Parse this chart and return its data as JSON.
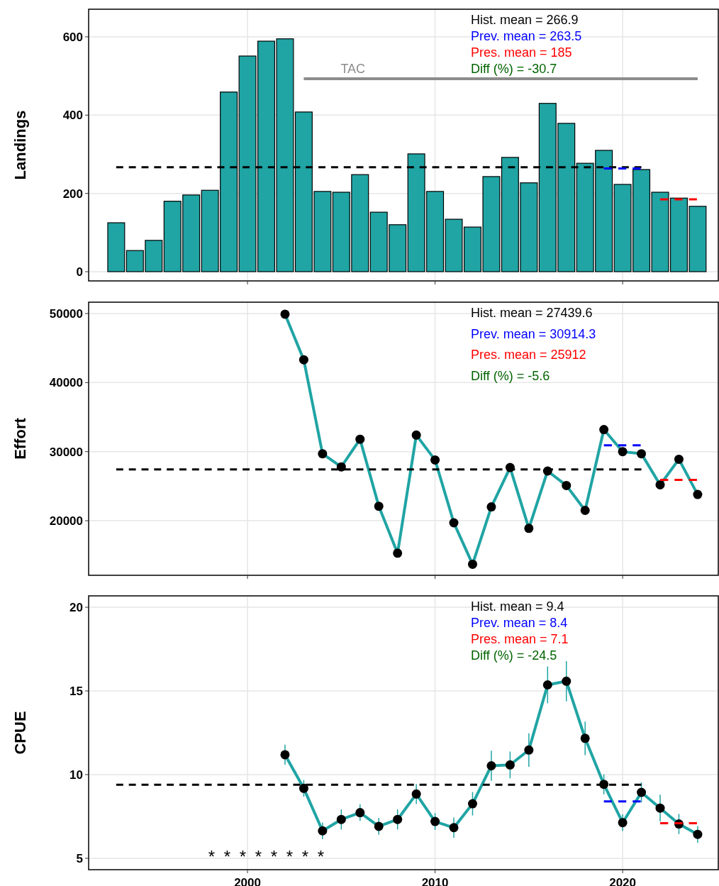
{
  "chart_data": [
    {
      "type": "bar",
      "ylabel": "Landings",
      "xlim": [
        1991.53,
        2025.1
      ],
      "xticks": [
        2000,
        2010,
        2020
      ],
      "ylim": [
        -23.6,
        670.6
      ],
      "yticks": [
        0,
        200,
        400,
        600
      ],
      "grid": true,
      "tick_labels": "y",
      "annotations": [
        "Hist. mean =  266.9",
        "Prev. mean =  263.5",
        "Pres. mean =  185",
        "Diff (%) =  -30.7"
      ],
      "series": [
        {
          "color": "#20a4a4",
          "x": [
            1993,
            1994,
            1995,
            1996,
            1997,
            1998,
            1999,
            2000,
            2001,
            2002,
            2003,
            2004,
            2005,
            2006,
            2007,
            2008,
            2009,
            2010,
            2011,
            2012,
            2013,
            2014,
            2015,
            2016,
            2017,
            2018,
            2019,
            2020,
            2021,
            2022,
            2023,
            2024
          ],
          "values": [
            125,
            54,
            80,
            180,
            196,
            208,
            459,
            551,
            589,
            595,
            408,
            205,
            203,
            248,
            152,
            120,
            301,
            205,
            134,
            114,
            243,
            292,
            227,
            430,
            379,
            277,
            310,
            223,
            261,
            203,
            188,
            167
          ]
        },
        {
          "type": "line",
          "name": "TAC",
          "color": "#8c8c8c",
          "x": [
            2003,
            2024
          ],
          "values": [
            493,
            493
          ]
        },
        {
          "type": "line",
          "color": "#000000",
          "line_style": "dashed",
          "x": [
            1993,
            2021
          ],
          "values": [
            266.9,
            266.9
          ]
        },
        {
          "type": "line",
          "color": "#0000ff",
          "line_style": "dashed",
          "x": [
            2019,
            2021
          ],
          "values": [
            263.5,
            263.5
          ]
        },
        {
          "type": "line",
          "color": "#ff0000",
          "line_style": "dashed",
          "x": [
            2022,
            2024
          ],
          "values": [
            185,
            185
          ]
        }
      ]
    },
    {
      "type": "line",
      "ylabel": "Effort",
      "xlim": [
        1991.53,
        2025.1
      ],
      "xticks": [
        2000,
        2010,
        2020
      ],
      "ylim": [
        12100,
        51640
      ],
      "yticks": [
        20000,
        30000,
        40000,
        50000
      ],
      "grid": true,
      "tick_labels": "y",
      "annotations": [
        "Hist. mean =  27439.6",
        "Prev. mean =  30914.3",
        "Pres. mean =  25912",
        "Diff (%) =  -5.6"
      ],
      "series": [
        {
          "color": "#20a4a4",
          "marker": "circle",
          "x": [
            2002,
            2003,
            2004,
            2005,
            2006,
            2007,
            2008,
            2009,
            2010,
            2011,
            2012,
            2013,
            2014,
            2015,
            2016,
            2017,
            2018,
            2019,
            2020,
            2021,
            2022,
            2023,
            2024
          ],
          "values": [
            49900,
            43300,
            29700,
            27800,
            31800,
            22100,
            15300,
            32400,
            28800,
            19700,
            13700,
            22000,
            27700,
            18900,
            27200,
            25100,
            21500,
            33200,
            30000,
            29700,
            25200,
            28900,
            23800
          ]
        },
        {
          "color": "#000000",
          "line_style": "dashed",
          "x": [
            1993,
            2021
          ],
          "values": [
            27439.6,
            27439.6
          ]
        },
        {
          "color": "#0000ff",
          "line_style": "dashed",
          "x": [
            2019,
            2021
          ],
          "values": [
            30914.3,
            30914.3
          ]
        },
        {
          "color": "#ff0000",
          "line_style": "dashed",
          "x": [
            2022,
            2024
          ],
          "values": [
            25912,
            25912
          ]
        }
      ]
    },
    {
      "type": "line",
      "ylabel": "CPUE",
      "xlim": [
        1991.53,
        2025.1
      ],
      "xticks": [
        2000,
        2010,
        2020
      ],
      "ylim": [
        4.32,
        20.68
      ],
      "yticks": [
        5,
        10,
        15,
        20
      ],
      "grid": true,
      "annotations": [
        "Hist. mean =  9.4",
        "Prev. mean =  8.4",
        "Pres. mean =  7.1",
        "Diff (%) =  -24.5",
        "* * * * * * * *"
      ],
      "series": [
        {
          "color": "#20a4a4",
          "marker": "circle",
          "x": [
            2002,
            2003,
            2004,
            2005,
            2006,
            2007,
            2008,
            2009,
            2010,
            2011,
            2012,
            2013,
            2014,
            2015,
            2016,
            2017,
            2018,
            2019,
            2020,
            2021,
            2022,
            2023,
            2024
          ],
          "values": [
            11.19,
            9.18,
            6.64,
            7.32,
            7.73,
            6.91,
            7.32,
            8.84,
            7.2,
            6.83,
            8.26,
            10.53,
            10.58,
            11.47,
            15.36,
            15.58,
            12.17,
            9.42,
            7.13,
            8.94,
            8.0,
            7.05,
            6.43
          ],
          "errors": [
            0.6,
            0.5,
            0.5,
            0.6,
            0.5,
            0.5,
            0.6,
            0.6,
            0.5,
            0.6,
            0.7,
            0.9,
            0.8,
            1.0,
            1.1,
            1.2,
            1.0,
            0.6,
            0.5,
            0.6,
            0.8,
            0.6,
            0.5
          ]
        },
        {
          "color": "#000000",
          "line_style": "dashed",
          "x": [
            1993,
            2021
          ],
          "values": [
            9.4,
            9.4
          ]
        },
        {
          "color": "#0000ff",
          "line_style": "dashed",
          "x": [
            2019,
            2021
          ],
          "values": [
            8.4,
            8.4
          ]
        },
        {
          "color": "#ff0000",
          "line_style": "dashed",
          "x": [
            2022,
            2024
          ],
          "values": [
            7.1,
            7.1
          ]
        }
      ]
    }
  ]
}
